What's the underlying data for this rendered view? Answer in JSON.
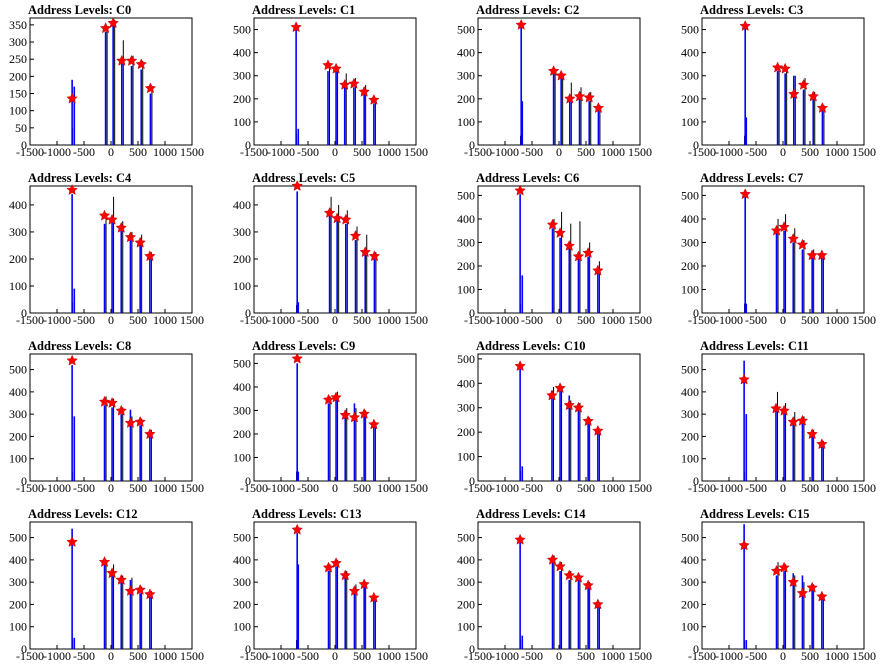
{
  "x_ticks": [
    "-1500",
    "-1000",
    "-500",
    "0",
    "500",
    "1000",
    "1500"
  ],
  "x_range": [
    -1500,
    1500
  ],
  "colors": {
    "peak": "#ff0000",
    "main_histogram": "#0000ff",
    "ref_histogram": "#000000",
    "axis": "#000000"
  },
  "marker_shape": "star",
  "chart_data": [
    {
      "type": "bar",
      "title": "Address Levels: C0",
      "ylim": [
        0,
        370
      ],
      "yticks": [
        "0",
        "50",
        "100",
        "150",
        "200",
        "250",
        "300",
        "350"
      ],
      "peaks": {
        "x": [
          -720,
          -100,
          40,
          200,
          380,
          560,
          730
        ],
        "y": [
          135,
          340,
          355,
          245,
          245,
          235,
          165
        ]
      },
      "blue": {
        "x": [
          -720,
          -680,
          -100,
          40,
          200,
          380,
          560,
          730
        ],
        "y": [
          190,
          170,
          330,
          365,
          240,
          230,
          220,
          150
        ]
      },
      "black": {
        "x": [
          -740,
          -100,
          40,
          200,
          380,
          560,
          730
        ],
        "y": [
          50,
          345,
          365,
          305,
          260,
          245,
          170
        ]
      }
    },
    {
      "type": "bar",
      "title": "Address Levels: C1",
      "ylim": [
        0,
        550
      ],
      "yticks": [
        "0",
        "100",
        "200",
        "300",
        "400",
        "500"
      ],
      "peaks": {
        "x": [
          -720,
          -130,
          20,
          180,
          350,
          540,
          720
        ],
        "y": [
          510,
          345,
          330,
          260,
          265,
          230,
          195
        ]
      },
      "blue": {
        "x": [
          -720,
          -680,
          -130,
          20,
          180,
          350,
          540,
          720
        ],
        "y": [
          500,
          70,
          320,
          340,
          250,
          250,
          220,
          180
        ]
      },
      "black": {
        "x": [
          -740,
          -130,
          20,
          180,
          350,
          540,
          720
        ],
        "y": [
          50,
          350,
          340,
          310,
          290,
          260,
          200
        ]
      }
    },
    {
      "type": "bar",
      "title": "Address Levels: C2",
      "ylim": [
        0,
        550
      ],
      "yticks": [
        "0",
        "100",
        "200",
        "300",
        "400",
        "500"
      ],
      "peaks": {
        "x": [
          -700,
          -100,
          40,
          200,
          380,
          560,
          730
        ],
        "y": [
          520,
          320,
          300,
          200,
          210,
          205,
          160
        ]
      },
      "blue": {
        "x": [
          -700,
          -680,
          -100,
          40,
          200,
          380,
          560,
          730
        ],
        "y": [
          510,
          190,
          310,
          290,
          210,
          230,
          190,
          150
        ]
      },
      "black": {
        "x": [
          -740,
          -100,
          40,
          200,
          380,
          560,
          730
        ],
        "y": [
          40,
          325,
          305,
          270,
          250,
          230,
          170
        ]
      }
    },
    {
      "type": "bar",
      "title": "Address Levels: C3",
      "ylim": [
        0,
        550
      ],
      "yticks": [
        "0",
        "100",
        "200",
        "300",
        "400",
        "500"
      ],
      "peaks": {
        "x": [
          -700,
          -100,
          40,
          200,
          380,
          560,
          730
        ],
        "y": [
          515,
          335,
          330,
          220,
          260,
          210,
          160
        ]
      },
      "blue": {
        "x": [
          -700,
          -680,
          -100,
          40,
          200,
          380,
          560,
          730
        ],
        "y": [
          505,
          120,
          320,
          310,
          300,
          240,
          200,
          150
        ]
      },
      "black": {
        "x": [
          -740,
          -100,
          40,
          200,
          380,
          560,
          730
        ],
        "y": [
          40,
          340,
          340,
          300,
          290,
          230,
          170
        ]
      }
    },
    {
      "type": "bar",
      "title": "Address Levels: C4",
      "ylim": [
        0,
        470
      ],
      "yticks": [
        "0",
        "100",
        "200",
        "300",
        "400"
      ],
      "peaks": {
        "x": [
          -720,
          -120,
          20,
          190,
          360,
          540,
          720
        ],
        "y": [
          455,
          360,
          345,
          315,
          280,
          260,
          210
        ]
      },
      "blue": {
        "x": [
          -720,
          -680,
          -120,
          20,
          190,
          360,
          540,
          720
        ],
        "y": [
          440,
          90,
          330,
          340,
          310,
          290,
          260,
          200
        ]
      },
      "black": {
        "x": [
          -740,
          -120,
          20,
          190,
          360,
          540,
          720
        ],
        "y": [
          40,
          370,
          430,
          340,
          300,
          290,
          225
        ]
      }
    },
    {
      "type": "bar",
      "title": "Address Levels: C5",
      "ylim": [
        0,
        470
      ],
      "yticks": [
        "0",
        "100",
        "200",
        "300",
        "400"
      ],
      "peaks": {
        "x": [
          -700,
          -100,
          40,
          200,
          380,
          560,
          730
        ],
        "y": [
          470,
          370,
          350,
          345,
          285,
          225,
          210
        ]
      },
      "blue": {
        "x": [
          -700,
          -680,
          -100,
          40,
          200,
          380,
          560,
          730
        ],
        "y": [
          450,
          40,
          360,
          340,
          330,
          270,
          220,
          200
        ]
      },
      "black": {
        "x": [
          -740,
          -100,
          40,
          200,
          380,
          560,
          730
        ],
        "y": [
          30,
          430,
          400,
          380,
          320,
          290,
          225
        ]
      }
    },
    {
      "type": "bar",
      "title": "Address Levels: C6",
      "ylim": [
        0,
        540
      ],
      "yticks": [
        "0",
        "100",
        "200",
        "300",
        "400",
        "500"
      ],
      "peaks": {
        "x": [
          -720,
          -120,
          20,
          190,
          360,
          540,
          720
        ],
        "y": [
          520,
          375,
          340,
          285,
          240,
          255,
          180
        ]
      },
      "blue": {
        "x": [
          -720,
          -680,
          -120,
          20,
          190,
          360,
          540,
          720
        ],
        "y": [
          505,
          160,
          360,
          320,
          290,
          250,
          240,
          170
        ]
      },
      "black": {
        "x": [
          -740,
          -120,
          20,
          190,
          360,
          540,
          720
        ],
        "y": [
          40,
          400,
          430,
          380,
          390,
          300,
          220
        ]
      }
    },
    {
      "type": "bar",
      "title": "Address Levels: C7",
      "ylim": [
        0,
        540
      ],
      "yticks": [
        "0",
        "100",
        "200",
        "300",
        "400",
        "500"
      ],
      "peaks": {
        "x": [
          -700,
          -120,
          20,
          190,
          360,
          540,
          720
        ],
        "y": [
          505,
          350,
          365,
          315,
          290,
          245,
          245
        ]
      },
      "blue": {
        "x": [
          -700,
          -680,
          -120,
          20,
          190,
          360,
          540,
          720
        ],
        "y": [
          500,
          40,
          340,
          350,
          300,
          270,
          240,
          240
        ]
      },
      "black": {
        "x": [
          -740,
          -120,
          20,
          190,
          360,
          540,
          720
        ],
        "y": [
          40,
          400,
          420,
          360,
          310,
          270,
          250
        ]
      }
    },
    {
      "type": "bar",
      "title": "Address Levels: C8",
      "ylim": [
        0,
        570
      ],
      "yticks": [
        "0",
        "100",
        "200",
        "300",
        "400",
        "500"
      ],
      "peaks": {
        "x": [
          -720,
          -120,
          20,
          190,
          360,
          540,
          720
        ],
        "y": [
          540,
          355,
          350,
          315,
          260,
          265,
          210
        ]
      },
      "blue": {
        "x": [
          -720,
          -680,
          -120,
          20,
          190,
          360,
          540,
          720
        ],
        "y": [
          520,
          290,
          340,
          330,
          300,
          320,
          250,
          200
        ]
      },
      "black": {
        "x": [
          -740,
          -120,
          20,
          190,
          360,
          540,
          720
        ],
        "y": [
          40,
          380,
          370,
          330,
          290,
          280,
          230
        ]
      }
    },
    {
      "type": "bar",
      "title": "Address Levels: C9",
      "ylim": [
        0,
        540
      ],
      "yticks": [
        "0",
        "100",
        "200",
        "300",
        "400",
        "500"
      ],
      "peaks": {
        "x": [
          -700,
          -120,
          20,
          190,
          360,
          540,
          720
        ],
        "y": [
          520,
          345,
          355,
          280,
          270,
          285,
          240
        ]
      },
      "blue": {
        "x": [
          -700,
          -680,
          -120,
          20,
          190,
          360,
          540,
          720
        ],
        "y": [
          500,
          40,
          330,
          360,
          300,
          330,
          300,
          230
        ]
      },
      "black": {
        "x": [
          -740,
          -120,
          20,
          190,
          360,
          540,
          720
        ],
        "y": [
          40,
          360,
          380,
          310,
          310,
          300,
          250
        ]
      }
    },
    {
      "type": "bar",
      "title": "Address Levels: C10",
      "ylim": [
        0,
        520
      ],
      "yticks": [
        "0",
        "100",
        "200",
        "300",
        "400",
        "500"
      ],
      "peaks": {
        "x": [
          -720,
          -130,
          20,
          190,
          360,
          540,
          720
        ],
        "y": [
          470,
          350,
          380,
          310,
          300,
          245,
          205
        ]
      },
      "blue": {
        "x": [
          -720,
          -680,
          -130,
          20,
          190,
          360,
          540,
          720
        ],
        "y": [
          460,
          60,
          370,
          370,
          350,
          300,
          240,
          200
        ]
      },
      "black": {
        "x": [
          -740,
          -130,
          20,
          190,
          360,
          540,
          720
        ],
        "y": [
          40,
          385,
          385,
          330,
          320,
          260,
          215
        ]
      }
    },
    {
      "type": "bar",
      "title": "Address Levels: C11",
      "ylim": [
        0,
        570
      ],
      "yticks": [
        "0",
        "100",
        "200",
        "300",
        "400",
        "500"
      ],
      "peaks": {
        "x": [
          -720,
          -130,
          20,
          190,
          360,
          540,
          720
        ],
        "y": [
          455,
          325,
          315,
          265,
          270,
          210,
          165
        ]
      },
      "blue": {
        "x": [
          -720,
          -680,
          -130,
          20,
          190,
          360,
          540,
          720
        ],
        "y": [
          540,
          300,
          340,
          310,
          260,
          260,
          200,
          160
        ]
      },
      "black": {
        "x": [
          -740,
          -130,
          20,
          190,
          360,
          540,
          720
        ],
        "y": [
          40,
          400,
          350,
          310,
          290,
          230,
          180
        ]
      }
    },
    {
      "type": "bar",
      "title": "Address Levels: C12",
      "ylim": [
        0,
        570
      ],
      "yticks": [
        "0",
        "100",
        "200",
        "300",
        "400",
        "500"
      ],
      "peaks": {
        "x": [
          -720,
          -120,
          20,
          190,
          360,
          540,
          720
        ],
        "y": [
          480,
          390,
          340,
          310,
          260,
          265,
          245
        ]
      },
      "blue": {
        "x": [
          -720,
          -680,
          -120,
          20,
          190,
          360,
          540,
          720
        ],
        "y": [
          540,
          50,
          380,
          330,
          300,
          310,
          250,
          240
        ]
      },
      "black": {
        "x": [
          -740,
          -120,
          20,
          190,
          360,
          540,
          720
        ],
        "y": [
          40,
          400,
          380,
          330,
          320,
          280,
          260
        ]
      }
    },
    {
      "type": "bar",
      "title": "Address Levels: C13",
      "ylim": [
        0,
        570
      ],
      "yticks": [
        "0",
        "100",
        "200",
        "300",
        "400",
        "500"
      ],
      "peaks": {
        "x": [
          -700,
          -120,
          20,
          190,
          360,
          540,
          720
        ],
        "y": [
          535,
          365,
          385,
          330,
          260,
          290,
          230
        ]
      },
      "blue": {
        "x": [
          -700,
          -680,
          -120,
          20,
          190,
          360,
          540,
          720
        ],
        "y": [
          520,
          380,
          350,
          370,
          320,
          270,
          280,
          220
        ]
      },
      "black": {
        "x": [
          -740,
          -120,
          20,
          190,
          360,
          540,
          720
        ],
        "y": [
          40,
          380,
          400,
          350,
          290,
          300,
          240
        ]
      }
    },
    {
      "type": "bar",
      "title": "Address Levels: C14",
      "ylim": [
        0,
        570
      ],
      "yticks": [
        "0",
        "100",
        "200",
        "300",
        "400",
        "500"
      ],
      "peaks": {
        "x": [
          -720,
          -120,
          20,
          190,
          360,
          540,
          720
        ],
        "y": [
          490,
          400,
          370,
          330,
          320,
          285,
          200
        ]
      },
      "blue": {
        "x": [
          -720,
          -680,
          -120,
          20,
          190,
          360,
          540,
          720
        ],
        "y": [
          480,
          60,
          390,
          350,
          310,
          340,
          280,
          190
        ]
      },
      "black": {
        "x": [
          -740,
          -120,
          20,
          190,
          360,
          540,
          720
        ],
        "y": [
          40,
          420,
          390,
          350,
          330,
          300,
          210
        ]
      }
    },
    {
      "type": "bar",
      "title": "Address Levels: C15",
      "ylim": [
        0,
        570
      ],
      "yticks": [
        "0",
        "100",
        "200",
        "300",
        "400",
        "500"
      ],
      "peaks": {
        "x": [
          -720,
          -120,
          20,
          190,
          360,
          540,
          720
        ],
        "y": [
          465,
          350,
          365,
          300,
          250,
          275,
          235
        ]
      },
      "blue": {
        "x": [
          -720,
          -680,
          -120,
          20,
          190,
          360,
          540,
          720
        ],
        "y": [
          560,
          40,
          330,
          350,
          340,
          330,
          270,
          230
        ]
      },
      "black": {
        "x": [
          -740,
          -120,
          20,
          190,
          360,
          540,
          720
        ],
        "y": [
          40,
          390,
          380,
          330,
          300,
          290,
          240
        ]
      }
    }
  ]
}
